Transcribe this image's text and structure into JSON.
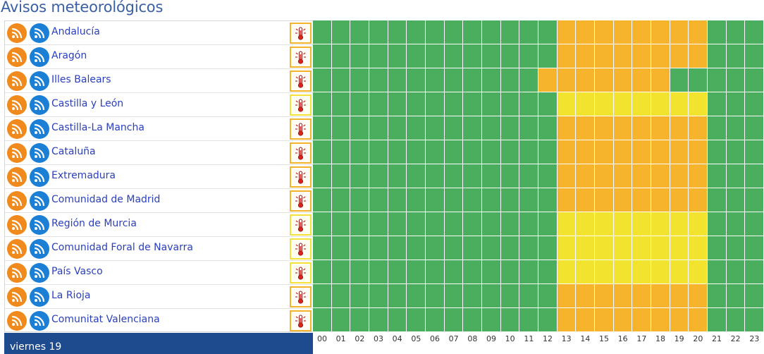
{
  "page": {
    "title": "Avisos meteorológicos"
  },
  "colors": {
    "green": "#4aae5e",
    "orange": "#f6b42c",
    "yellow": "#f2e32e",
    "link": "#2a3fbf",
    "day_bar": "#1e4a8e"
  },
  "hours": [
    "00",
    "01",
    "02",
    "03",
    "04",
    "05",
    "06",
    "07",
    "08",
    "09",
    "10",
    "11",
    "12",
    "13",
    "14",
    "15",
    "16",
    "17",
    "18",
    "19",
    "20",
    "21",
    "22",
    "23"
  ],
  "day": {
    "label": "viernes 19"
  },
  "icons": {
    "feed_a": "rss-orange-icon",
    "feed_b": "rss-blue-icon",
    "warning": "thermometer-icon"
  },
  "regions": [
    {
      "name": "Andalucía",
      "level": "orange",
      "warnings": [
        "g",
        "g",
        "g",
        "g",
        "g",
        "g",
        "g",
        "g",
        "g",
        "g",
        "g",
        "g",
        "g",
        "o",
        "o",
        "o",
        "o",
        "o",
        "o",
        "o",
        "o",
        "g",
        "g",
        "g"
      ]
    },
    {
      "name": "Aragón",
      "level": "orange",
      "warnings": [
        "g",
        "g",
        "g",
        "g",
        "g",
        "g",
        "g",
        "g",
        "g",
        "g",
        "g",
        "g",
        "g",
        "o",
        "o",
        "o",
        "o",
        "o",
        "o",
        "o",
        "o",
        "g",
        "g",
        "g"
      ]
    },
    {
      "name": "Illes Balears",
      "level": "orange",
      "warnings": [
        "g",
        "g",
        "g",
        "g",
        "g",
        "g",
        "g",
        "g",
        "g",
        "g",
        "g",
        "g",
        "o",
        "o",
        "o",
        "o",
        "o",
        "o",
        "o",
        "g",
        "g",
        "g",
        "g",
        "g"
      ]
    },
    {
      "name": "Castilla y León",
      "level": "yellow",
      "warnings": [
        "g",
        "g",
        "g",
        "g",
        "g",
        "g",
        "g",
        "g",
        "g",
        "g",
        "g",
        "g",
        "g",
        "y",
        "y",
        "y",
        "y",
        "y",
        "y",
        "y",
        "y",
        "g",
        "g",
        "g"
      ]
    },
    {
      "name": "Castilla-La Mancha",
      "level": "orange",
      "warnings": [
        "g",
        "g",
        "g",
        "g",
        "g",
        "g",
        "g",
        "g",
        "g",
        "g",
        "g",
        "g",
        "g",
        "o",
        "o",
        "o",
        "o",
        "o",
        "o",
        "o",
        "o",
        "g",
        "g",
        "g"
      ]
    },
    {
      "name": "Cataluña",
      "level": "orange",
      "warnings": [
        "g",
        "g",
        "g",
        "g",
        "g",
        "g",
        "g",
        "g",
        "g",
        "g",
        "g",
        "g",
        "g",
        "o",
        "o",
        "o",
        "o",
        "o",
        "o",
        "o",
        "o",
        "g",
        "g",
        "g"
      ]
    },
    {
      "name": "Extremadura",
      "level": "orange",
      "warnings": [
        "g",
        "g",
        "g",
        "g",
        "g",
        "g",
        "g",
        "g",
        "g",
        "g",
        "g",
        "g",
        "g",
        "o",
        "o",
        "o",
        "o",
        "o",
        "o",
        "o",
        "o",
        "g",
        "g",
        "g"
      ]
    },
    {
      "name": "Comunidad de Madrid",
      "level": "orange",
      "warnings": [
        "g",
        "g",
        "g",
        "g",
        "g",
        "g",
        "g",
        "g",
        "g",
        "g",
        "g",
        "g",
        "g",
        "o",
        "o",
        "o",
        "o",
        "o",
        "o",
        "o",
        "o",
        "g",
        "g",
        "g"
      ]
    },
    {
      "name": "Región de Murcia",
      "level": "yellow",
      "warnings": [
        "g",
        "g",
        "g",
        "g",
        "g",
        "g",
        "g",
        "g",
        "g",
        "g",
        "g",
        "g",
        "g",
        "y",
        "y",
        "y",
        "y",
        "y",
        "y",
        "y",
        "y",
        "g",
        "g",
        "g"
      ]
    },
    {
      "name": "Comunidad Foral de Navarra",
      "level": "yellow",
      "warnings": [
        "g",
        "g",
        "g",
        "g",
        "g",
        "g",
        "g",
        "g",
        "g",
        "g",
        "g",
        "g",
        "g",
        "y",
        "y",
        "y",
        "y",
        "y",
        "y",
        "y",
        "y",
        "g",
        "g",
        "g"
      ]
    },
    {
      "name": "País Vasco",
      "level": "yellow",
      "warnings": [
        "g",
        "g",
        "g",
        "g",
        "g",
        "g",
        "g",
        "g",
        "g",
        "g",
        "g",
        "g",
        "g",
        "y",
        "y",
        "y",
        "y",
        "y",
        "y",
        "y",
        "y",
        "g",
        "g",
        "g"
      ]
    },
    {
      "name": "La Rioja",
      "level": "orange",
      "warnings": [
        "g",
        "g",
        "g",
        "g",
        "g",
        "g",
        "g",
        "g",
        "g",
        "g",
        "g",
        "g",
        "g",
        "o",
        "o",
        "o",
        "o",
        "o",
        "o",
        "o",
        "o",
        "g",
        "g",
        "g"
      ]
    },
    {
      "name": "Comunitat Valenciana",
      "level": "orange",
      "warnings": [
        "g",
        "g",
        "g",
        "g",
        "g",
        "g",
        "g",
        "g",
        "g",
        "g",
        "g",
        "g",
        "g",
        "o",
        "o",
        "o",
        "o",
        "o",
        "o",
        "o",
        "o",
        "g",
        "g",
        "g"
      ]
    }
  ]
}
